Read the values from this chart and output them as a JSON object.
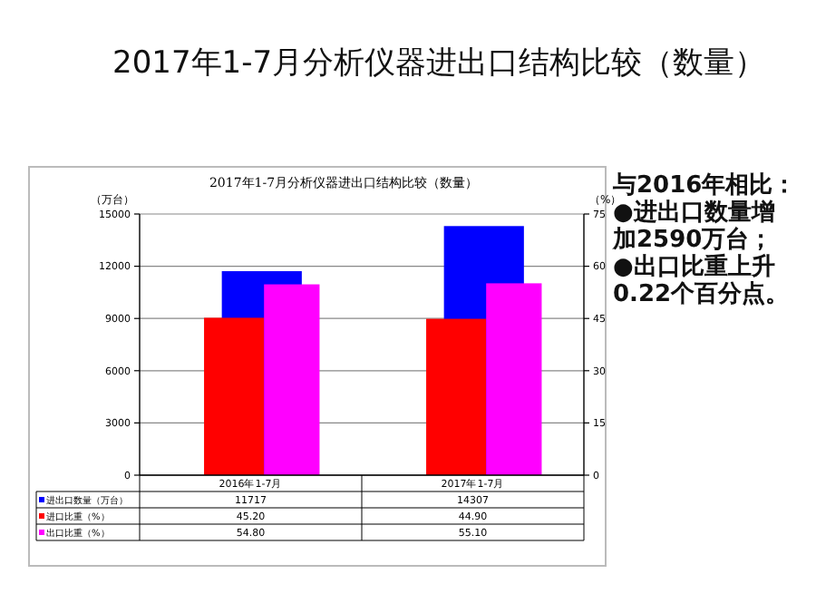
{
  "chart_data": {
    "type": "bar",
    "title": "2017年1-7月分析仪器进出口结构比较（数量）",
    "subtitle": "2017年1-7月分析仪器进出口结构比较（数量）",
    "ylabel": "（万台）",
    "y2label": "（%）",
    "categories": [
      "2016年1-7月",
      "2017年1-7月"
    ],
    "series": [
      {
        "name": "进出口数量（万台）",
        "color": "#0000ff",
        "values": [
          11717,
          14307
        ],
        "value_labels": [
          "11717",
          "14307"
        ]
      },
      {
        "name": "进口比重（%）",
        "color": "#ff0000",
        "values": [
          45.2,
          44.9
        ],
        "axis": "y2",
        "value_labels": [
          "45.20",
          "44.90"
        ]
      },
      {
        "name": "出口比重（%）",
        "color": "#ff00ff",
        "values": [
          54.8,
          55.1
        ],
        "axis": "y2",
        "value_labels": [
          "54.80",
          "55.10"
        ]
      }
    ],
    "ylim": [
      0,
      15000
    ],
    "yticks": [
      0,
      3000,
      6000,
      9000,
      12000,
      15000
    ],
    "y2lim": [
      0,
      75
    ],
    "y2ticks": [
      0,
      15,
      30,
      45,
      60,
      75
    ],
    "grid": "y",
    "legend": "bottom",
    "annotations": [
      "与2016年相比：\n●进出口数量增加2590万台；\n●出口比重上升0.22个百分点。"
    ]
  }
}
